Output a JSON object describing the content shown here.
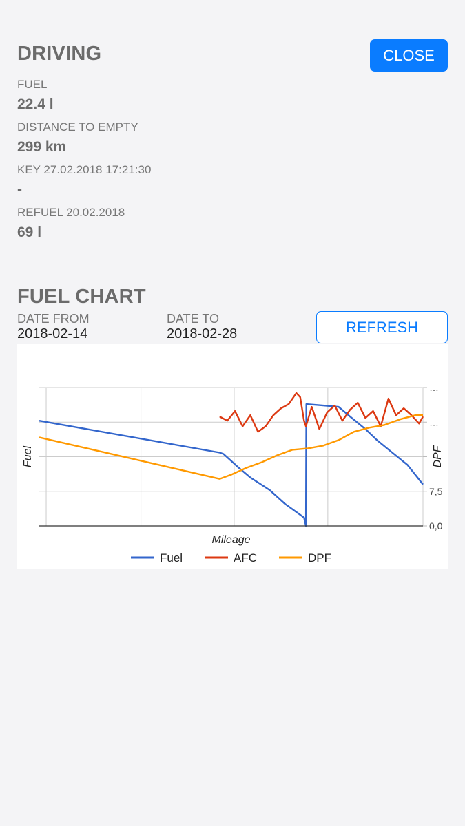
{
  "driving": {
    "title": "DRIVING",
    "close_label": "CLOSE",
    "fields": [
      {
        "label": "FUEL",
        "value": "22.4 l"
      },
      {
        "label": "DISTANCE TO EMPTY",
        "value": "299 km"
      },
      {
        "label": "KEY 27.02.2018 17:21:30",
        "value": "-"
      },
      {
        "label": "REFUEL 20.02.2018",
        "value": "69 l"
      }
    ]
  },
  "fuel_chart": {
    "title": "FUEL CHART",
    "date_from_label": "DATE FROM",
    "date_from": "2018-02-14",
    "date_to_label": "DATE TO",
    "date_to": "2018-02-28",
    "refresh_label": "REFRESH"
  },
  "chart_data": {
    "type": "line",
    "xlabel": "Mileage",
    "ylabel_left": "Fuel",
    "ylabel_right": "DPF",
    "right_ticks": [
      "…",
      "…",
      "",
      "7,5",
      "0,0"
    ],
    "legend_position": "bottom",
    "grid": true,
    "series": [
      {
        "name": "Fuel",
        "color": "#3366cc",
        "axis": "left",
        "points": [
          [
            0,
            0.76
          ],
          [
            47,
            0.53
          ],
          [
            48,
            0.52
          ],
          [
            50,
            0.47
          ],
          [
            52,
            0.42
          ],
          [
            55,
            0.35
          ],
          [
            60,
            0.26
          ],
          [
            64,
            0.16
          ],
          [
            69,
            0.06
          ],
          [
            69.5,
            0.0
          ],
          [
            69.6,
            0.88
          ],
          [
            74,
            0.87
          ],
          [
            78,
            0.86
          ],
          [
            81,
            0.79
          ],
          [
            85,
            0.7
          ],
          [
            88,
            0.62
          ],
          [
            92,
            0.53
          ],
          [
            96,
            0.44
          ],
          [
            100,
            0.3
          ]
        ]
      },
      {
        "name": "AFC",
        "color": "#dc3912",
        "axis": "left",
        "points": [
          [
            47,
            0.79
          ],
          [
            49,
            0.76
          ],
          [
            51,
            0.83
          ],
          [
            53,
            0.72
          ],
          [
            55,
            0.8
          ],
          [
            57,
            0.68
          ],
          [
            59,
            0.72
          ],
          [
            61,
            0.8
          ],
          [
            63,
            0.85
          ],
          [
            65,
            0.88
          ],
          [
            67,
            0.96
          ],
          [
            68,
            0.93
          ],
          [
            69,
            0.76
          ],
          [
            69.5,
            0.72
          ],
          [
            71,
            0.86
          ],
          [
            73,
            0.7
          ],
          [
            75,
            0.82
          ],
          [
            77,
            0.87
          ],
          [
            79,
            0.76
          ],
          [
            81,
            0.84
          ],
          [
            83,
            0.89
          ],
          [
            85,
            0.78
          ],
          [
            87,
            0.83
          ],
          [
            89,
            0.72
          ],
          [
            91,
            0.92
          ],
          [
            93,
            0.8
          ],
          [
            95,
            0.85
          ],
          [
            97,
            0.8
          ],
          [
            99,
            0.74
          ],
          [
            100,
            0.79
          ]
        ]
      },
      {
        "name": "DPF",
        "color": "#ff9900",
        "axis": "right",
        "points": [
          [
            0,
            0.64
          ],
          [
            47,
            0.34
          ],
          [
            50,
            0.37
          ],
          [
            54,
            0.42
          ],
          [
            58,
            0.46
          ],
          [
            62,
            0.51
          ],
          [
            66,
            0.55
          ],
          [
            70,
            0.56
          ],
          [
            74,
            0.58
          ],
          [
            78,
            0.62
          ],
          [
            82,
            0.68
          ],
          [
            86,
            0.71
          ],
          [
            90,
            0.73
          ],
          [
            94,
            0.77
          ],
          [
            98,
            0.8
          ],
          [
            100,
            0.8
          ]
        ]
      }
    ]
  }
}
